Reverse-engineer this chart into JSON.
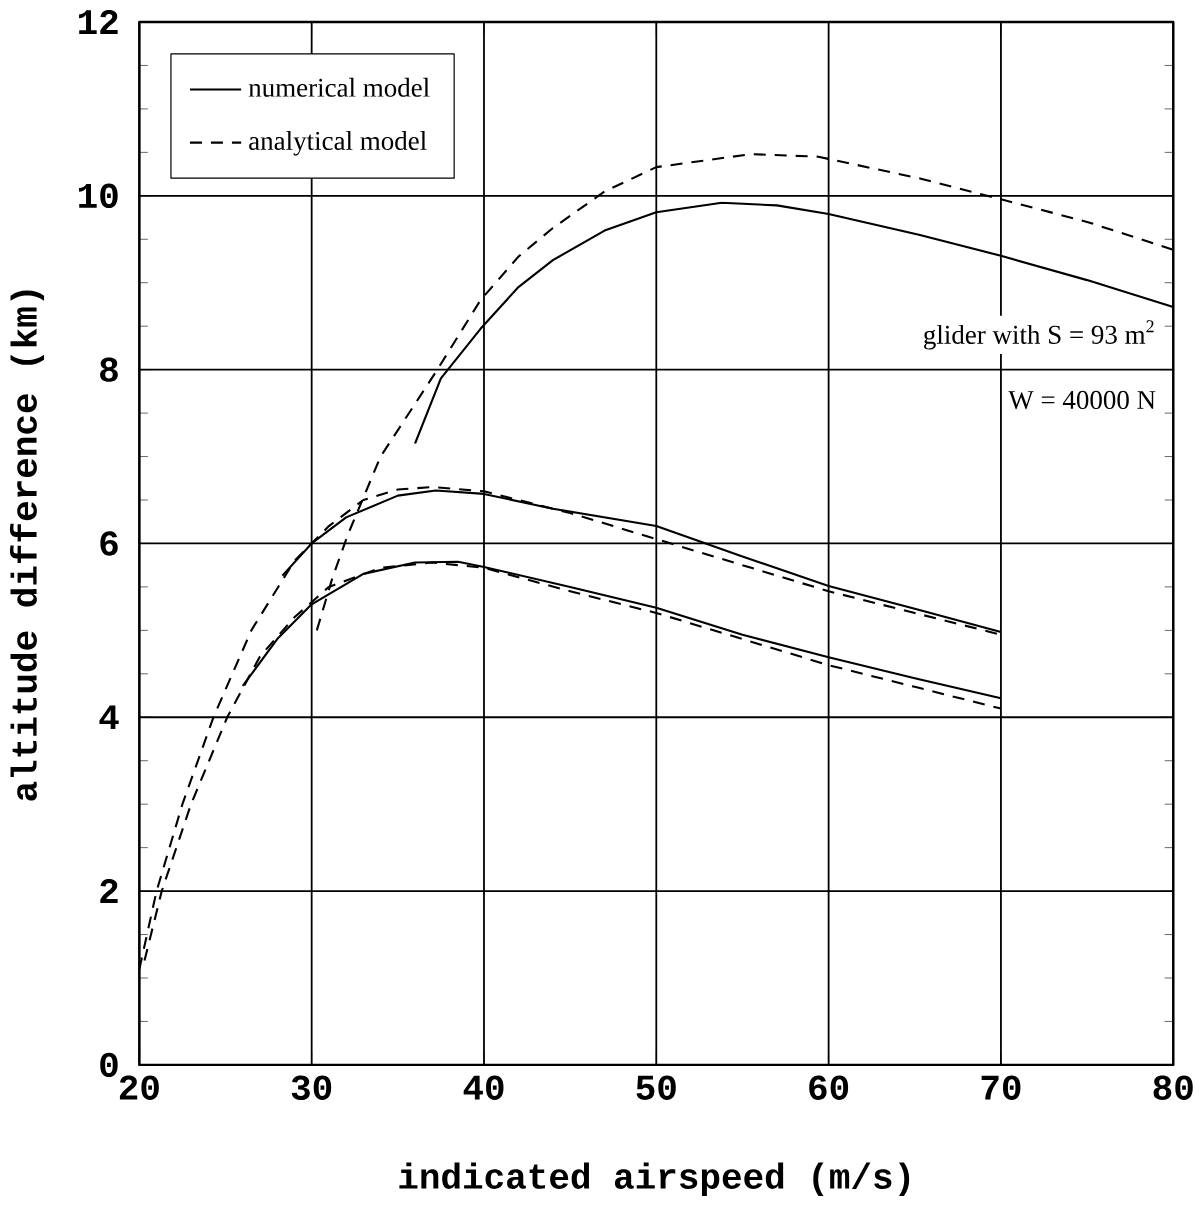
{
  "chart_data": {
    "type": "line",
    "xlabel": "indicated airspeed (m/s)",
    "ylabel": "altitude difference (km)",
    "xlim": [
      20,
      80
    ],
    "ylim": [
      0,
      12
    ],
    "xticks": [
      20,
      30,
      40,
      50,
      60,
      70,
      80
    ],
    "yticks": [
      0,
      2,
      4,
      6,
      8,
      10,
      12
    ],
    "grid": true,
    "legend": "top left",
    "marker": "none",
    "annotations": [
      "glider with  S = 93 m$^{2}$",
      "W = 40000 N"
    ],
    "series": [
      {
        "name": "numerical model",
        "color": "#000000",
        "line_style": "solid",
        "x": [
          36.0,
          37.5,
          39.8,
          42,
          44.0,
          47,
          50.0,
          53.8,
          57.0,
          60,
          65.3,
          70,
          75,
          80
        ],
        "values": [
          7.15,
          7.9,
          8.47,
          8.95,
          9.26,
          9.6,
          9.81,
          9.92,
          9.89,
          9.79,
          9.55,
          9.31,
          9.03,
          8.72
        ]
      },
      {
        "name": "analytical model",
        "color": "#000000",
        "line_style": "dashed",
        "x": [
          30.3,
          31.2,
          32.1,
          34,
          37.2,
          39.8,
          42,
          44.0,
          47,
          50.0,
          55.5,
          59.4,
          65.3,
          70,
          75,
          80
        ],
        "values": [
          5.0,
          5.6,
          6.1,
          7.0,
          7.97,
          8.8,
          9.3,
          9.63,
          10.05,
          10.33,
          10.48,
          10.45,
          10.2,
          9.96,
          9.7,
          9.38
        ]
      },
      {
        "color": "#000000",
        "line_style": "solid",
        "x": [
          28.3,
          30,
          32,
          35,
          37.2,
          40,
          44,
          50,
          55,
          60,
          65,
          70
        ],
        "values": [
          5.63,
          6.0,
          6.3,
          6.55,
          6.61,
          6.57,
          6.4,
          6.2,
          5.85,
          5.51,
          5.25,
          4.98
        ]
      },
      {
        "color": "#000000",
        "line_style": "dashed",
        "x": [
          20,
          21,
          22.5,
          24.3,
          26.5,
          29,
          31,
          33,
          35,
          37,
          40,
          45,
          50,
          55,
          60,
          65,
          70
        ],
        "values": [
          1.1,
          2.0,
          3.0,
          4.0,
          5.0,
          5.8,
          6.2,
          6.5,
          6.62,
          6.65,
          6.6,
          6.35,
          6.05,
          5.75,
          5.45,
          5.2,
          4.95
        ]
      },
      {
        "color": "#000000",
        "line_style": "solid",
        "x": [
          26,
          28,
          30,
          33,
          36,
          38.5,
          40,
          45,
          50,
          55,
          60,
          65,
          70
        ],
        "values": [
          4.36,
          4.9,
          5.3,
          5.65,
          5.78,
          5.79,
          5.73,
          5.5,
          5.26,
          4.95,
          4.69,
          4.45,
          4.22
        ]
      },
      {
        "color": "#000000",
        "line_style": "dashed",
        "x": [
          20.3,
          21.3,
          23,
          25.1,
          27,
          29,
          31,
          34,
          37,
          40,
          45,
          50,
          55,
          60,
          65,
          70
        ],
        "values": [
          1.2,
          2.0,
          3.0,
          4.0,
          4.7,
          5.15,
          5.5,
          5.72,
          5.78,
          5.72,
          5.45,
          5.2,
          4.9,
          4.6,
          4.35,
          4.1
        ]
      }
    ]
  }
}
